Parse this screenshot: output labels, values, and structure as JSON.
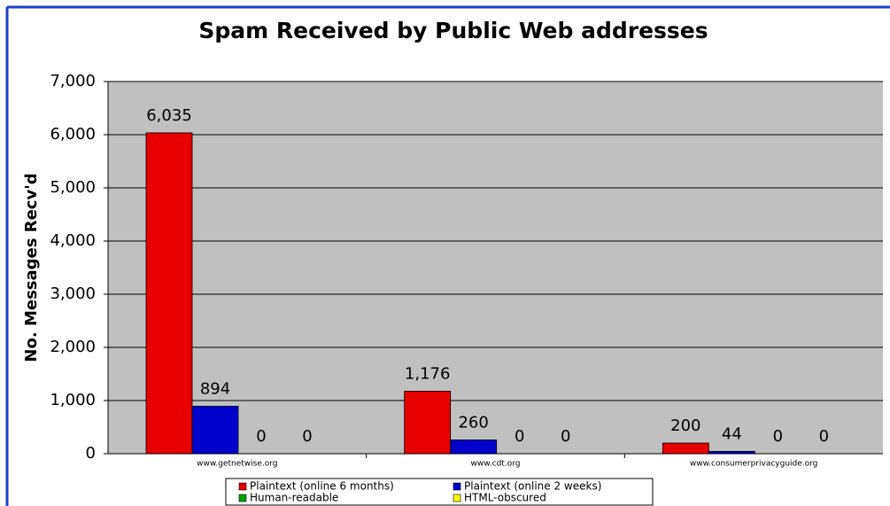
{
  "chart_data": {
    "type": "bar",
    "title": "Spam Received by Public Web addresses",
    "y_label": "No. Messages Recv'd",
    "categories": [
      "www.getnetwise.org",
      "www.cdt.org",
      "www.consumerprivacyguide.org"
    ],
    "series": [
      {
        "name": "Plaintext (online 6 months)",
        "color": "#e60000",
        "values": [
          6035,
          1176,
          200
        ],
        "value_labels": [
          "6,035",
          "1,176",
          "200"
        ]
      },
      {
        "name": "Plaintext (online 2 weeks)",
        "color": "#0000cc",
        "values": [
          894,
          260,
          44
        ],
        "value_labels": [
          "894",
          "260",
          "44"
        ]
      },
      {
        "name": "Human-readable",
        "color": "#00a000",
        "values": [
          0,
          0,
          0
        ],
        "value_labels": [
          "0",
          "0",
          "0"
        ]
      },
      {
        "name": "HTML-obscured",
        "color": "#ffff00",
        "values": [
          0,
          0,
          0
        ],
        "value_labels": [
          "0",
          "0",
          "0"
        ]
      }
    ],
    "ylim": [
      0,
      7000
    ],
    "yticks": [
      0,
      {
        "value": 1000,
        "label": "1,000"
      },
      {
        "value": 2000,
        "label": "2,000"
      },
      {
        "value": 3000,
        "label": "3,000"
      },
      {
        "value": 4000,
        "label": "4,000"
      },
      {
        "value": 5000,
        "label": "5,000"
      },
      {
        "value": 6000,
        "label": "6,000"
      },
      {
        "value": 7000,
        "label": "7,000"
      }
    ],
    "grid": true
  }
}
